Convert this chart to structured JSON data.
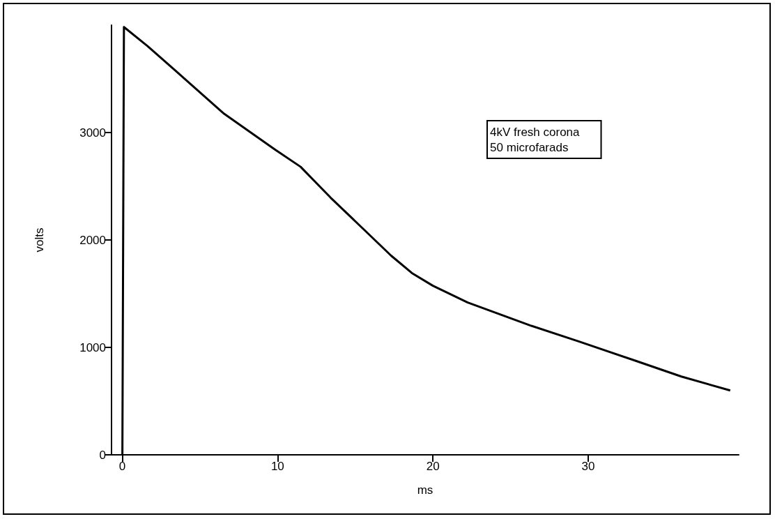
{
  "chart_data": {
    "type": "line",
    "xlabel": "ms",
    "ylabel": "volts",
    "annotations": [
      "4kV fresh corona",
      "50 microfarads"
    ],
    "series": [
      {
        "color": "#000000",
        "x": [
          0,
          0.1,
          1.61,
          4.17,
          6.55,
          9.82,
          11.48,
          13.41,
          16.28,
          17.31,
          18.65,
          20.0,
          22.24,
          26.28,
          29.42,
          33.0,
          36.0,
          39.15
        ],
        "values": [
          0,
          3982,
          3806,
          3480,
          3175,
          2843,
          2681,
          2394,
          1997,
          1854,
          1692,
          1574,
          1418,
          1204,
          1054,
          878,
          729,
          599
        ]
      }
    ],
    "xlim": [
      -0.7,
      39.7
    ],
    "xticks": [
      0,
      10,
      20,
      30
    ],
    "ylim": [
      0,
      4000
    ],
    "yticks": [
      0,
      1000,
      2000,
      3000
    ],
    "marker": "none",
    "line_style": "solid"
  }
}
